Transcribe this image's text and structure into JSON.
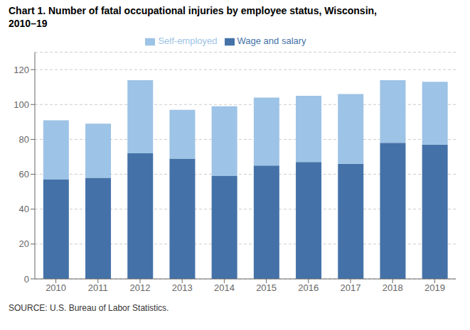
{
  "chart_data": {
    "type": "bar",
    "stacked": true,
    "title": "Chart 1. Number of fatal occupational injuries by employee status, Wisconsin,\n2010–19",
    "annotations": [
      "SOURCE: U.S. Bureau of Labor Statistics."
    ],
    "categories": [
      "2010",
      "2011",
      "2012",
      "2013",
      "2014",
      "2015",
      "2016",
      "2017",
      "2018",
      "2019"
    ],
    "series": [
      {
        "name": "Wage and salary",
        "color": "#4472a8",
        "values": [
          57,
          58,
          72,
          69,
          59,
          65,
          67,
          66,
          78,
          77
        ]
      },
      {
        "name": "Self-employed",
        "color": "#9dc3e6",
        "values": [
          34,
          31,
          42,
          28,
          40,
          39,
          38,
          40,
          36,
          36
        ]
      }
    ],
    "ylim": [
      0,
      130
    ],
    "yticks": [
      0,
      20,
      40,
      60,
      80,
      100,
      120
    ],
    "grid": true,
    "legend": "top"
  }
}
